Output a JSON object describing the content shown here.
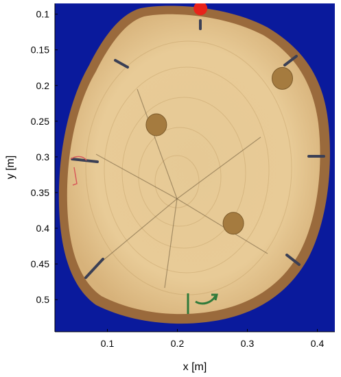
{
  "chart_data": {
    "type": "image",
    "title": "",
    "xlabel": "x [m]",
    "ylabel": "y [m]",
    "xlim": [
      0.025,
      0.425
    ],
    "ylim": [
      0.085,
      0.545
    ],
    "y_reversed": true,
    "xticks": [
      0.1,
      0.2,
      0.3,
      0.4
    ],
    "xtick_labels": [
      "0.1",
      "0.2",
      "0.3",
      "0.4"
    ],
    "yticks": [
      0.1,
      0.15,
      0.2,
      0.25,
      0.3,
      0.35,
      0.4,
      0.45,
      0.5
    ],
    "ytick_labels": [
      "0.1",
      "0.15",
      "0.2",
      "0.25",
      "0.3",
      "0.35",
      "0.4",
      "0.45",
      "0.5"
    ],
    "grid": false,
    "image_subject": "log-cross-section",
    "background_color": "#0a1a9c",
    "marker": {
      "x": 0.233,
      "y": 0.092,
      "color": "#e8231a",
      "shape": "circle"
    },
    "knots": [
      {
        "x": 0.17,
        "y": 0.255
      },
      {
        "x": 0.35,
        "y": 0.19
      },
      {
        "x": 0.28,
        "y": 0.393
      }
    ]
  },
  "colors": {
    "wood": "#e4c48f",
    "bark": "#9a6a3c",
    "knot": "#a57b3f",
    "ink": "#3a3f55",
    "annotation_green": "#2f7a3a",
    "annotation_red": "#d85a5a"
  }
}
